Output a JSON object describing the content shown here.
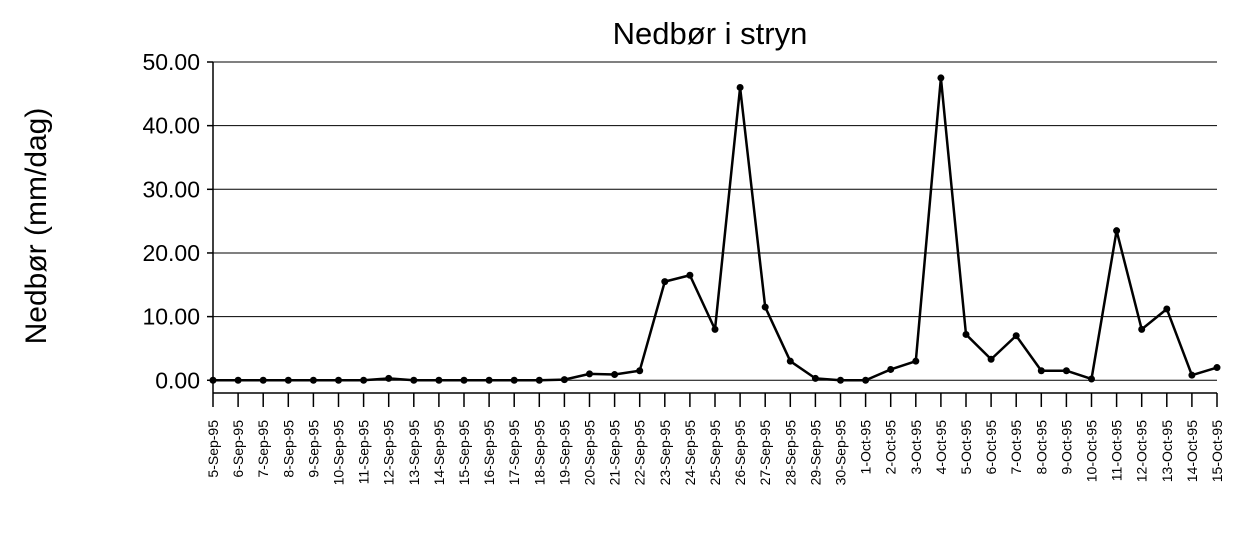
{
  "chart_data": {
    "type": "line",
    "title": "Nedbør i stryn",
    "y_label": "Nedbør (mm/dag)",
    "categories": [
      "5-Sep-95",
      "6-Sep-95",
      "7-Sep-95",
      "8-Sep-95",
      "9-Sep-95",
      "10-Sep-95",
      "11-Sep-95",
      "12-Sep-95",
      "13-Sep-95",
      "14-Sep-95",
      "15-Sep-95",
      "16-Sep-95",
      "17-Sep-95",
      "18-Sep-95",
      "19-Sep-95",
      "20-Sep-95",
      "21-Sep-95",
      "22-Sep-95",
      "23-Sep-95",
      "24-Sep-95",
      "25-Sep-95",
      "26-Sep-95",
      "27-Sep-95",
      "28-Sep-95",
      "29-Sep-95",
      "30-Sep-95",
      "1-Oct-95",
      "2-Oct-95",
      "3-Oct-95",
      "4-Oct-95",
      "5-Oct-95",
      "6-Oct-95",
      "7-Oct-95",
      "8-Oct-95",
      "9-Oct-95",
      "10-Oct-95",
      "11-Oct-95",
      "12-Oct-95",
      "13-Oct-95",
      "14-Oct-95",
      "15-Oct-95"
    ],
    "values": [
      0,
      0,
      0,
      0,
      0,
      0,
      0,
      0.3,
      0,
      0,
      0,
      0,
      0,
      0,
      0.1,
      1.0,
      0.9,
      1.5,
      15.5,
      16.5,
      8.0,
      46.0,
      11.5,
      3.0,
      0.3,
      0,
      0,
      1.7,
      3.0,
      47.5,
      7.2,
      3.3,
      7.0,
      1.5,
      1.5,
      0.2,
      23.5,
      8.0,
      11.2,
      0.8,
      2.0
    ],
    "color": "#000000",
    "ylim": [
      -2,
      50
    ],
    "yticks": [
      {
        "value": 0,
        "label": "0.00"
      },
      {
        "value": 10,
        "label": "10.00"
      },
      {
        "value": 20,
        "label": "20.00"
      },
      {
        "value": 30,
        "label": "30.00"
      },
      {
        "value": 40,
        "label": "40.00"
      },
      {
        "value": 50,
        "label": "50.00"
      }
    ],
    "grid": true
  }
}
